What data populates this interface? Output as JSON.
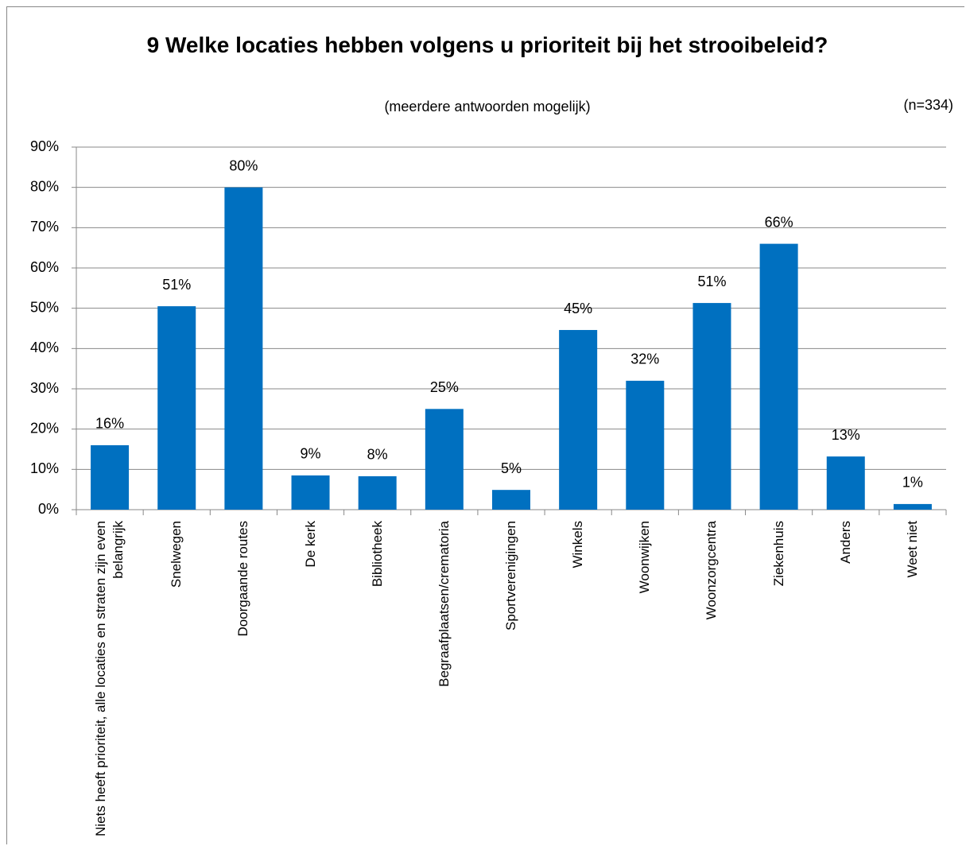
{
  "chart_data": {
    "type": "bar",
    "title": "9 Welke locaties hebben volgens u prioriteit bij het strooibeleid?",
    "subtitle": "(meerdere antwoorden mogelijk)",
    "annotation": "(n=334)",
    "categories": [
      "Niets heeft prioriteit, alle locaties en straten zijn even belangrijk",
      "Snelwegen",
      "Doorgaande routes",
      "De kerk",
      "Bibliotheek",
      "Begraafplaatsen/crematoria",
      "Sportverenigingen",
      "Winkels",
      "Woonwijken",
      "Woonzorgcentra",
      "Ziekenhuis",
      "Anders",
      "Weet niet"
    ],
    "values": [
      16,
      50.5,
      80,
      8.5,
      8.3,
      25,
      4.9,
      44.6,
      32,
      51.3,
      66,
      13.2,
      1.4
    ],
    "value_labels": [
      "16%",
      "51%",
      "80%",
      "9%",
      "8%",
      "25%",
      "5%",
      "45%",
      "32%",
      "51%",
      "66%",
      "13%",
      "1%"
    ],
    "color": "#0070c0",
    "ylim": [
      0,
      90
    ],
    "yticks": [
      {
        "value": 0,
        "label": "0%"
      },
      {
        "value": 10,
        "label": "10%"
      },
      {
        "value": 20,
        "label": "20%"
      },
      {
        "value": 30,
        "label": "30%"
      },
      {
        "value": 40,
        "label": "40%"
      },
      {
        "value": 50,
        "label": "50%"
      },
      {
        "value": 60,
        "label": "60%"
      },
      {
        "value": 70,
        "label": "70%"
      },
      {
        "value": 80,
        "label": "80%"
      },
      {
        "value": 90,
        "label": "90%"
      }
    ],
    "grid": true
  }
}
